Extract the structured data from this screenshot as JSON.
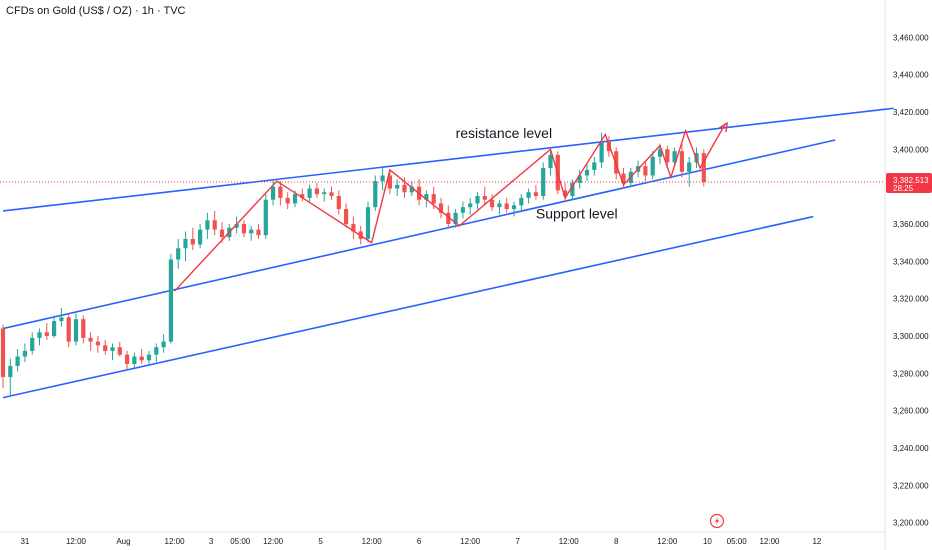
{
  "header": {
    "title": "CFDs on Gold (US$ / OZ) · 1h · TVC"
  },
  "colors": {
    "up": "#26a69a",
    "down": "#ef5350",
    "trend": "#2962ff",
    "zigzag": "#f23645",
    "price_tag": "#f23645"
  },
  "chart_data": {
    "type": "candlestick",
    "title": "CFDs on Gold (US$ / OZ) · 1h · TVC",
    "ylim": [
      3195,
      3480
    ],
    "xlim": [
      0,
      115
    ],
    "grid": false,
    "y_ticks": [
      "3,460.000",
      "3,440.000",
      "3,420.000",
      "3,400.000",
      "3,380.000",
      "3,360.000",
      "3,340.000",
      "3,320.000",
      "3,300.000",
      "3,280.000",
      "3,260.000",
      "3,240.000",
      "3,220.000",
      "3,200.000"
    ],
    "y_tick_values": [
      3460,
      3440,
      3420,
      3400,
      3380,
      3360,
      3340,
      3320,
      3300,
      3280,
      3260,
      3240,
      3220,
      3200
    ],
    "x_ticks": [
      {
        "label": "31",
        "x": 3
      },
      {
        "label": "12:00",
        "x": 10
      },
      {
        "label": "Aug",
        "x": 16.5
      },
      {
        "label": "12:00",
        "x": 23.5
      },
      {
        "label": "3",
        "x": 28.5
      },
      {
        "label": "05:00",
        "x": 32.5
      },
      {
        "label": "12:00",
        "x": 37
      },
      {
        "label": "5",
        "x": 43.5
      },
      {
        "label": "12:00",
        "x": 50.5
      },
      {
        "label": "6",
        "x": 57
      },
      {
        "label": "12:00",
        "x": 64
      },
      {
        "label": "7",
        "x": 70.5
      },
      {
        "label": "12:00",
        "x": 77.5
      },
      {
        "label": "8",
        "x": 84
      },
      {
        "label": "12:00",
        "x": 91
      },
      {
        "label": "10",
        "x": 96.5
      },
      {
        "label": "05:00",
        "x": 100.5
      },
      {
        "label": "12:00",
        "x": 105
      },
      {
        "label": "12",
        "x": 111.5
      }
    ],
    "last_price": {
      "value": 3382.513,
      "label": "3,382.513",
      "countdown": "28:25"
    },
    "annotations": [
      {
        "text": "resistance level",
        "x": 62,
        "y": 3406
      },
      {
        "text": "Support level",
        "x": 73,
        "y": 3363
      }
    ],
    "trend_lines": [
      {
        "name": "resistance",
        "from": [
          0,
          3367
        ],
        "to": [
          122,
          3422
        ]
      },
      {
        "name": "support",
        "from": [
          0,
          3304
        ],
        "to": [
          114,
          3405
        ]
      },
      {
        "name": "lower",
        "from": [
          0,
          3267
        ],
        "to": [
          111,
          3364
        ]
      }
    ],
    "zigzag": [
      [
        23.5,
        3324
      ],
      [
        37.5,
        3383
      ],
      [
        50.5,
        3350
      ],
      [
        53,
        3389
      ],
      [
        62.5,
        3359
      ],
      [
        75,
        3400
      ],
      [
        77,
        3374
      ],
      [
        82.5,
        3408
      ],
      [
        85,
        3381
      ],
      [
        90,
        3402
      ],
      [
        91.5,
        3385
      ],
      [
        93.5,
        3410
      ],
      [
        95.5,
        3390
      ],
      [
        99,
        3414
      ]
    ],
    "zigzag_arrow": {
      "from": [
        97.5,
        3404
      ],
      "to": [
        99.2,
        3414
      ]
    },
    "candles": [
      {
        "x": 0,
        "o": 3304,
        "h": 3306,
        "l": 3272,
        "c": 3278
      },
      {
        "x": 1,
        "o": 3278,
        "h": 3288,
        "l": 3268,
        "c": 3284
      },
      {
        "x": 2,
        "o": 3284,
        "h": 3293,
        "l": 3281,
        "c": 3289
      },
      {
        "x": 3,
        "o": 3289,
        "h": 3296,
        "l": 3286,
        "c": 3292
      },
      {
        "x": 4,
        "o": 3292,
        "h": 3302,
        "l": 3290,
        "c": 3299
      },
      {
        "x": 5,
        "o": 3299,
        "h": 3304,
        "l": 3295,
        "c": 3302
      },
      {
        "x": 6,
        "o": 3302,
        "h": 3307,
        "l": 3298,
        "c": 3300
      },
      {
        "x": 7,
        "o": 3300,
        "h": 3311,
        "l": 3299,
        "c": 3308
      },
      {
        "x": 8,
        "o": 3308,
        "h": 3315,
        "l": 3305,
        "c": 3310
      },
      {
        "x": 9,
        "o": 3310,
        "h": 3312,
        "l": 3294,
        "c": 3297
      },
      {
        "x": 10,
        "o": 3297,
        "h": 3312,
        "l": 3295,
        "c": 3309
      },
      {
        "x": 11,
        "o": 3309,
        "h": 3311,
        "l": 3296,
        "c": 3299
      },
      {
        "x": 12,
        "o": 3299,
        "h": 3302,
        "l": 3292,
        "c": 3297
      },
      {
        "x": 13,
        "o": 3297,
        "h": 3300,
        "l": 3291,
        "c": 3295
      },
      {
        "x": 14,
        "o": 3295,
        "h": 3298,
        "l": 3290,
        "c": 3292
      },
      {
        "x": 15,
        "o": 3292,
        "h": 3296,
        "l": 3287,
        "c": 3294
      },
      {
        "x": 16,
        "o": 3294,
        "h": 3297,
        "l": 3289,
        "c": 3290
      },
      {
        "x": 17,
        "o": 3290,
        "h": 3292,
        "l": 3282,
        "c": 3285
      },
      {
        "x": 18,
        "o": 3285,
        "h": 3291,
        "l": 3283,
        "c": 3289
      },
      {
        "x": 19,
        "o": 3289,
        "h": 3293,
        "l": 3285,
        "c": 3287
      },
      {
        "x": 20,
        "o": 3287,
        "h": 3292,
        "l": 3284,
        "c": 3290
      },
      {
        "x": 21,
        "o": 3290,
        "h": 3296,
        "l": 3286,
        "c": 3294
      },
      {
        "x": 22,
        "o": 3294,
        "h": 3301,
        "l": 3291,
        "c": 3297
      },
      {
        "x": 23,
        "o": 3297,
        "h": 3344,
        "l": 3296,
        "c": 3341
      },
      {
        "x": 24,
        "o": 3341,
        "h": 3352,
        "l": 3336,
        "c": 3347
      },
      {
        "x": 25,
        "o": 3347,
        "h": 3356,
        "l": 3340,
        "c": 3352
      },
      {
        "x": 26,
        "o": 3352,
        "h": 3358,
        "l": 3346,
        "c": 3349
      },
      {
        "x": 27,
        "o": 3349,
        "h": 3360,
        "l": 3347,
        "c": 3357
      },
      {
        "x": 28,
        "o": 3357,
        "h": 3366,
        "l": 3352,
        "c": 3362
      },
      {
        "x": 29,
        "o": 3362,
        "h": 3367,
        "l": 3354,
        "c": 3357
      },
      {
        "x": 30,
        "o": 3357,
        "h": 3361,
        "l": 3350,
        "c": 3353
      },
      {
        "x": 31,
        "o": 3353,
        "h": 3360,
        "l": 3351,
        "c": 3358
      },
      {
        "x": 32,
        "o": 3358,
        "h": 3364,
        "l": 3355,
        "c": 3360
      },
      {
        "x": 33,
        "o": 3360,
        "h": 3362,
        "l": 3353,
        "c": 3355
      },
      {
        "x": 34,
        "o": 3355,
        "h": 3359,
        "l": 3351,
        "c": 3357
      },
      {
        "x": 35,
        "o": 3357,
        "h": 3360,
        "l": 3352,
        "c": 3354
      },
      {
        "x": 36,
        "o": 3354,
        "h": 3376,
        "l": 3352,
        "c": 3373
      },
      {
        "x": 37,
        "o": 3373,
        "h": 3384,
        "l": 3370,
        "c": 3380
      },
      {
        "x": 38,
        "o": 3380,
        "h": 3383,
        "l": 3370,
        "c": 3374
      },
      {
        "x": 39,
        "o": 3374,
        "h": 3377,
        "l": 3368,
        "c": 3371
      },
      {
        "x": 40,
        "o": 3371,
        "h": 3378,
        "l": 3369,
        "c": 3376
      },
      {
        "x": 41,
        "o": 3376,
        "h": 3379,
        "l": 3372,
        "c": 3374
      },
      {
        "x": 42,
        "o": 3374,
        "h": 3381,
        "l": 3372,
        "c": 3379
      },
      {
        "x": 43,
        "o": 3379,
        "h": 3382,
        "l": 3374,
        "c": 3376
      },
      {
        "x": 44,
        "o": 3376,
        "h": 3379,
        "l": 3372,
        "c": 3377
      },
      {
        "x": 45,
        "o": 3377,
        "h": 3380,
        "l": 3373,
        "c": 3375
      },
      {
        "x": 46,
        "o": 3375,
        "h": 3378,
        "l": 3365,
        "c": 3368
      },
      {
        "x": 47,
        "o": 3368,
        "h": 3371,
        "l": 3358,
        "c": 3360
      },
      {
        "x": 48,
        "o": 3360,
        "h": 3364,
        "l": 3352,
        "c": 3356
      },
      {
        "x": 49,
        "o": 3356,
        "h": 3359,
        "l": 3349,
        "c": 3352
      },
      {
        "x": 50,
        "o": 3352,
        "h": 3372,
        "l": 3350,
        "c": 3369
      },
      {
        "x": 51,
        "o": 3369,
        "h": 3386,
        "l": 3367,
        "c": 3383
      },
      {
        "x": 52,
        "o": 3383,
        "h": 3390,
        "l": 3378,
        "c": 3386
      },
      {
        "x": 53,
        "o": 3386,
        "h": 3389,
        "l": 3376,
        "c": 3379
      },
      {
        "x": 54,
        "o": 3379,
        "h": 3384,
        "l": 3375,
        "c": 3381
      },
      {
        "x": 55,
        "o": 3381,
        "h": 3385,
        "l": 3374,
        "c": 3377
      },
      {
        "x": 56,
        "o": 3377,
        "h": 3383,
        "l": 3375,
        "c": 3380
      },
      {
        "x": 57,
        "o": 3380,
        "h": 3384,
        "l": 3370,
        "c": 3373
      },
      {
        "x": 58,
        "o": 3373,
        "h": 3378,
        "l": 3369,
        "c": 3376
      },
      {
        "x": 59,
        "o": 3376,
        "h": 3380,
        "l": 3368,
        "c": 3371
      },
      {
        "x": 60,
        "o": 3371,
        "h": 3374,
        "l": 3363,
        "c": 3366
      },
      {
        "x": 61,
        "o": 3366,
        "h": 3370,
        "l": 3358,
        "c": 3360
      },
      {
        "x": 62,
        "o": 3360,
        "h": 3368,
        "l": 3358,
        "c": 3366
      },
      {
        "x": 63,
        "o": 3366,
        "h": 3372,
        "l": 3363,
        "c": 3369
      },
      {
        "x": 64,
        "o": 3369,
        "h": 3374,
        "l": 3365,
        "c": 3371
      },
      {
        "x": 65,
        "o": 3371,
        "h": 3377,
        "l": 3368,
        "c": 3375
      },
      {
        "x": 66,
        "o": 3375,
        "h": 3380,
        "l": 3370,
        "c": 3373
      },
      {
        "x": 67,
        "o": 3373,
        "h": 3376,
        "l": 3367,
        "c": 3369
      },
      {
        "x": 68,
        "o": 3369,
        "h": 3373,
        "l": 3365,
        "c": 3371
      },
      {
        "x": 69,
        "o": 3371,
        "h": 3374,
        "l": 3366,
        "c": 3368
      },
      {
        "x": 70,
        "o": 3368,
        "h": 3372,
        "l": 3364,
        "c": 3370
      },
      {
        "x": 71,
        "o": 3370,
        "h": 3376,
        "l": 3367,
        "c": 3374
      },
      {
        "x": 72,
        "o": 3374,
        "h": 3379,
        "l": 3371,
        "c": 3377
      },
      {
        "x": 73,
        "o": 3377,
        "h": 3381,
        "l": 3373,
        "c": 3375
      },
      {
        "x": 74,
        "o": 3375,
        "h": 3393,
        "l": 3373,
        "c": 3390
      },
      {
        "x": 75,
        "o": 3390,
        "h": 3401,
        "l": 3386,
        "c": 3397
      },
      {
        "x": 76,
        "o": 3397,
        "h": 3399,
        "l": 3376,
        "c": 3378
      },
      {
        "x": 77,
        "o": 3378,
        "h": 3382,
        "l": 3372,
        "c": 3375
      },
      {
        "x": 78,
        "o": 3375,
        "h": 3384,
        "l": 3373,
        "c": 3382
      },
      {
        "x": 79,
        "o": 3382,
        "h": 3389,
        "l": 3379,
        "c": 3386
      },
      {
        "x": 80,
        "o": 3386,
        "h": 3392,
        "l": 3383,
        "c": 3389
      },
      {
        "x": 81,
        "o": 3389,
        "h": 3396,
        "l": 3386,
        "c": 3393
      },
      {
        "x": 82,
        "o": 3393,
        "h": 3409,
        "l": 3390,
        "c": 3404
      },
      {
        "x": 83,
        "o": 3404,
        "h": 3407,
        "l": 3396,
        "c": 3399
      },
      {
        "x": 84,
        "o": 3399,
        "h": 3401,
        "l": 3384,
        "c": 3387
      },
      {
        "x": 85,
        "o": 3387,
        "h": 3390,
        "l": 3379,
        "c": 3382
      },
      {
        "x": 86,
        "o": 3382,
        "h": 3390,
        "l": 3380,
        "c": 3388
      },
      {
        "x": 87,
        "o": 3388,
        "h": 3394,
        "l": 3385,
        "c": 3391
      },
      {
        "x": 88,
        "o": 3391,
        "h": 3393,
        "l": 3383,
        "c": 3386
      },
      {
        "x": 89,
        "o": 3386,
        "h": 3399,
        "l": 3384,
        "c": 3396
      },
      {
        "x": 90,
        "o": 3396,
        "h": 3403,
        "l": 3392,
        "c": 3400
      },
      {
        "x": 91,
        "o": 3400,
        "h": 3402,
        "l": 3390,
        "c": 3393
      },
      {
        "x": 92,
        "o": 3393,
        "h": 3401,
        "l": 3391,
        "c": 3399
      },
      {
        "x": 93,
        "o": 3399,
        "h": 3403,
        "l": 3385,
        "c": 3388
      },
      {
        "x": 94,
        "o": 3388,
        "h": 3396,
        "l": 3380,
        "c": 3393
      },
      {
        "x": 95,
        "o": 3393,
        "h": 3401,
        "l": 3390,
        "c": 3398
      },
      {
        "x": 96,
        "o": 3398,
        "h": 3400,
        "l": 3380,
        "c": 3382.5
      }
    ]
  }
}
